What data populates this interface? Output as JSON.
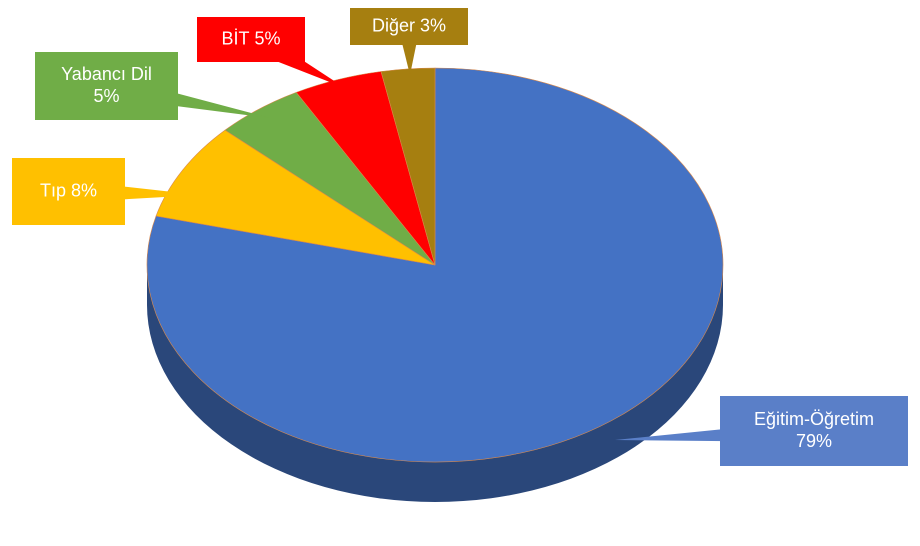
{
  "chart_data": {
    "type": "pie",
    "categories": [
      "Eğitim-Öğretim",
      "Tıp",
      "Yabancı Dil",
      "BİT",
      "Diğer"
    ],
    "values": [
      79,
      8,
      5,
      5,
      3
    ],
    "value_labels": [
      "79%",
      "8%",
      "5%",
      "5%",
      "3%"
    ],
    "colors": [
      "#4472c4",
      "#ffc000",
      "#70ad47",
      "#ff0000",
      "#a67f10"
    ]
  }
}
